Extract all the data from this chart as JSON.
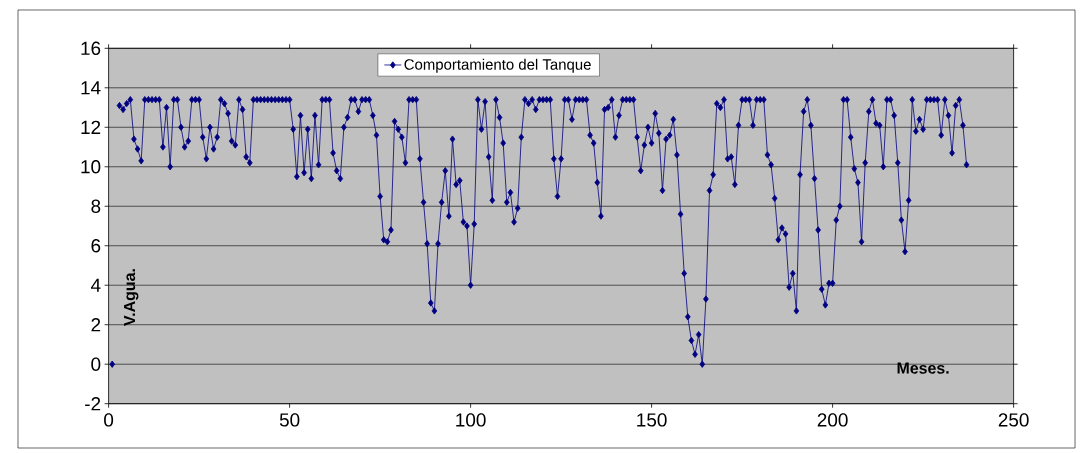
{
  "chart_data": {
    "type": "line",
    "xlabel": "Meses.",
    "ylabel": "V.Agua.",
    "xlim": [
      0,
      250
    ],
    "ylim": [
      -2,
      16
    ],
    "xticks": [
      0,
      50,
      100,
      150,
      200,
      250
    ],
    "yticks": [
      -2,
      0,
      2,
      4,
      6,
      8,
      10,
      12,
      14,
      16
    ],
    "grid": "y",
    "legend": "top",
    "marker": "diamond",
    "line_style": "solid",
    "x": [
      1,
      2,
      3,
      4,
      5,
      6,
      7,
      8,
      9,
      10,
      11,
      12,
      13,
      14,
      15,
      16,
      17,
      18,
      19,
      20,
      21,
      22,
      23,
      24,
      25,
      26,
      27,
      28,
      29,
      30,
      31,
      32,
      33,
      34,
      35,
      36,
      37,
      38,
      39,
      40,
      41,
      42,
      43,
      44,
      45,
      46,
      47,
      48,
      49,
      50,
      51,
      52,
      53,
      54,
      55,
      56,
      57,
      58,
      59,
      60,
      61,
      62,
      63,
      64,
      65,
      66,
      67,
      68,
      69,
      70,
      71,
      72,
      73,
      74,
      75,
      76,
      77,
      78,
      79,
      80,
      81,
      82,
      83,
      84,
      85,
      86,
      87,
      88,
      89,
      90,
      91,
      92,
      93,
      94,
      95,
      96,
      97,
      98,
      99,
      100,
      101,
      102,
      103,
      104,
      105,
      106,
      107,
      108,
      109,
      110,
      111,
      112,
      113,
      114,
      115,
      116,
      117,
      118,
      119,
      120,
      121,
      122,
      123,
      124,
      125,
      126,
      127,
      128,
      129,
      130,
      131,
      132,
      133,
      134,
      135,
      136,
      137,
      138,
      139,
      140,
      141,
      142,
      143,
      144,
      145,
      146,
      147,
      148,
      149,
      150,
      151,
      152,
      153,
      154,
      155,
      156,
      157,
      158,
      159,
      160,
      161,
      162,
      163,
      164,
      165,
      166,
      167,
      168,
      169,
      170,
      171,
      172,
      173,
      174,
      175,
      176,
      177,
      178,
      179,
      180,
      181,
      182,
      183,
      184,
      185,
      186,
      187,
      188,
      189,
      190,
      191,
      192,
      193,
      194,
      195,
      196,
      197,
      198,
      199,
      200,
      201,
      202,
      203,
      204,
      205,
      206,
      207,
      208,
      209,
      210,
      211,
      212,
      213,
      214,
      215,
      216,
      217,
      218,
      219,
      220,
      221,
      222,
      223,
      224,
      225,
      226,
      227,
      228,
      229,
      230,
      231,
      232,
      233,
      234,
      235,
      236,
      237
    ],
    "series": [
      {
        "name": "Comportamiento del Tanque",
        "color": "#000080",
        "values": [
          0,
          null,
          13.1,
          12.9,
          13.2,
          13.4,
          11.4,
          10.9,
          10.3,
          13.4,
          13.4,
          13.4,
          13.4,
          13.4,
          11.0,
          13.0,
          10.0,
          13.4,
          13.4,
          12.0,
          11.0,
          11.3,
          13.4,
          13.4,
          13.4,
          11.5,
          10.4,
          12.0,
          10.9,
          11.5,
          13.4,
          13.2,
          12.7,
          11.3,
          11.1,
          13.4,
          12.9,
          10.5,
          10.2,
          13.4,
          13.4,
          13.4,
          13.4,
          13.4,
          13.4,
          13.4,
          13.4,
          13.4,
          13.4,
          13.4,
          11.9,
          9.5,
          12.6,
          9.7,
          11.9,
          9.4,
          12.6,
          10.1,
          13.4,
          13.4,
          13.4,
          10.7,
          9.8,
          9.4,
          12.0,
          12.5,
          13.4,
          13.4,
          12.8,
          13.4,
          13.4,
          13.4,
          12.6,
          11.6,
          8.5,
          6.3,
          6.2,
          6.8,
          12.3,
          11.9,
          11.5,
          10.2,
          13.4,
          13.4,
          13.4,
          10.4,
          8.2,
          6.1,
          3.1,
          2.7,
          6.1,
          8.2,
          9.8,
          7.5,
          11.4,
          9.1,
          9.3,
          7.2,
          7.0,
          4.0,
          7.1,
          13.4,
          11.9,
          13.3,
          10.5,
          8.3,
          13.4,
          12.5,
          11.2,
          8.2,
          8.7,
          7.2,
          7.9,
          11.5,
          13.4,
          13.2,
          13.4,
          12.9,
          13.4,
          13.4,
          13.4,
          13.4,
          10.4,
          8.5,
          10.4,
          13.4,
          13.4,
          12.4,
          13.4,
          13.4,
          13.4,
          13.4,
          11.6,
          11.2,
          9.2,
          7.5,
          12.9,
          13.0,
          13.4,
          11.5,
          12.6,
          13.4,
          13.4,
          13.4,
          13.4,
          11.5,
          9.8,
          11.1,
          12.0,
          11.2,
          12.7,
          11.7,
          8.8,
          11.4,
          11.6,
          12.4,
          10.6,
          7.6,
          4.6,
          2.4,
          1.2,
          0.5,
          1.5,
          0,
          3.3,
          8.8,
          9.6,
          13.2,
          13.0,
          13.4,
          10.4,
          10.5,
          9.1,
          12.1,
          13.4,
          13.4,
          13.4,
          12.1,
          13.4,
          13.4,
          13.4,
          10.6,
          10.1,
          8.4,
          6.3,
          6.9,
          6.6,
          3.9,
          4.6,
          2.7,
          9.6,
          12.8,
          13.4,
          12.1,
          9.4,
          6.8,
          3.8,
          3.0,
          4.1,
          4.1,
          7.3,
          8.0,
          13.4,
          13.4,
          11.5,
          9.9,
          9.2,
          6.2,
          10.2,
          12.8,
          13.4,
          12.2,
          12.1,
          10.0,
          13.4,
          13.4,
          12.6,
          10.2,
          7.3,
          5.7,
          8.3,
          13.4,
          11.8,
          12.4,
          11.9,
          13.4,
          13.4,
          13.4,
          13.4,
          11.6,
          13.4,
          12.6,
          10.7,
          13.1,
          13.4,
          12.1,
          10.1
        ]
      }
    ]
  }
}
